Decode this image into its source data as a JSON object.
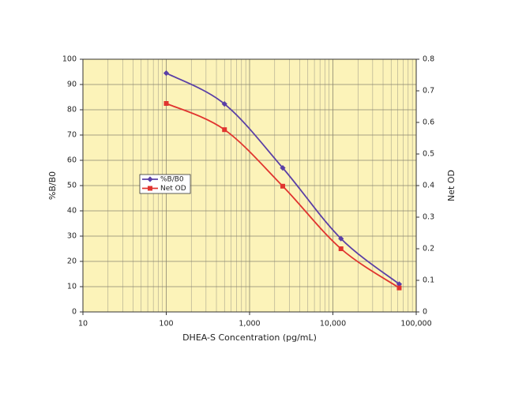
{
  "chart_data": {
    "type": "line",
    "x_label": "DHEA-S Concentration (pg/mL)",
    "y_label": "%B/B0",
    "y2_label": "Net OD",
    "log_x": true,
    "grid": true,
    "minor_grid": true,
    "background": "#fcf3b9",
    "x": [
      100,
      500,
      2500,
      12500,
      62500
    ],
    "series": [
      {
        "name": "%B/B0",
        "color": "#5a3fa6",
        "marker": "diamond",
        "values": [
          94.5,
          82.3,
          57,
          29,
          11
        ]
      },
      {
        "name": "Net OD",
        "color": "#e0342f",
        "marker": "square",
        "axis": "y2",
        "values": [
          0.66,
          0.577,
          0.398,
          0.2,
          0.076
        ]
      }
    ],
    "xlim": [
      10,
      100000
    ],
    "xticks": [
      10,
      100,
      {
        "value": 1000,
        "label": "1,000"
      },
      {
        "value": 10000,
        "label": "10,000"
      },
      {
        "value": 100000,
        "label": "100,000"
      }
    ],
    "ylim": [
      0,
      100
    ],
    "yticks": [
      0,
      10,
      20,
      30,
      40,
      50,
      60,
      70,
      80,
      90,
      100
    ],
    "y2lim": [
      0,
      0.8
    ],
    "y2ticks": [
      0,
      0.1,
      0.2,
      0.3,
      0.4,
      0.5,
      0.6,
      0.7,
      0.8
    ],
    "legend": "left"
  }
}
